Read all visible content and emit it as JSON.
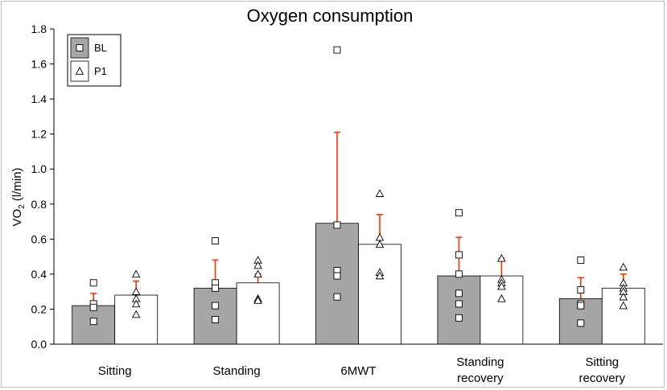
{
  "chart_data": {
    "type": "bar",
    "title": "Oxygen consumption",
    "ylabel_main": "VO",
    "ylabel_sub": "2",
    "ylabel_unit": " (l/min)",
    "ylim": [
      0,
      1.8
    ],
    "ytick_step": 0.2,
    "yticks": [
      "0.0",
      "0.2",
      "0.4",
      "0.6",
      "0.8",
      "1.0",
      "1.2",
      "1.4",
      "1.6",
      "1.8"
    ],
    "categories": [
      {
        "lines": [
          "Sitting"
        ]
      },
      {
        "lines": [
          "Standing"
        ]
      },
      {
        "lines": [
          "6MWT"
        ]
      },
      {
        "lines": [
          "Standing",
          "recovery"
        ]
      },
      {
        "lines": [
          "Sitting",
          "recovery"
        ]
      }
    ],
    "series": [
      {
        "name": "BL",
        "marker": "square",
        "fill": "#a6a6a6",
        "values": [
          0.22,
          0.32,
          0.69,
          0.39,
          0.26
        ],
        "error": [
          0.07,
          0.16,
          0.52,
          0.22,
          0.12
        ],
        "points": [
          [
            0.35,
            0.23,
            0.21,
            0.13
          ],
          [
            0.59,
            0.35,
            0.32,
            0.22,
            0.14
          ],
          [
            1.68,
            0.68,
            0.42,
            0.39,
            0.27
          ],
          [
            0.75,
            0.51,
            0.4,
            0.29,
            0.23,
            0.15
          ],
          [
            0.48,
            0.31,
            0.23,
            0.22,
            0.12
          ]
        ]
      },
      {
        "name": "P1",
        "marker": "triangle",
        "fill": "#ffffff",
        "values": [
          0.28,
          0.35,
          0.57,
          0.39,
          0.32
        ],
        "error": [
          0.08,
          0.05,
          0.17,
          0.1,
          0.08
        ],
        "points": [
          [
            0.4,
            0.3,
            0.26,
            0.23,
            0.17
          ],
          [
            0.48,
            0.45,
            0.4,
            0.26,
            0.25
          ],
          [
            0.86,
            0.61,
            0.57,
            0.41,
            0.39
          ],
          [
            0.49,
            0.37,
            0.35,
            0.33,
            0.26
          ],
          [
            0.44,
            0.35,
            0.32,
            0.3,
            0.27,
            0.22
          ]
        ]
      }
    ],
    "legend_position": "top-left",
    "colors": {
      "error_bar": "#ff3300",
      "axis": "#000000",
      "bar_edge": "#000000"
    }
  }
}
